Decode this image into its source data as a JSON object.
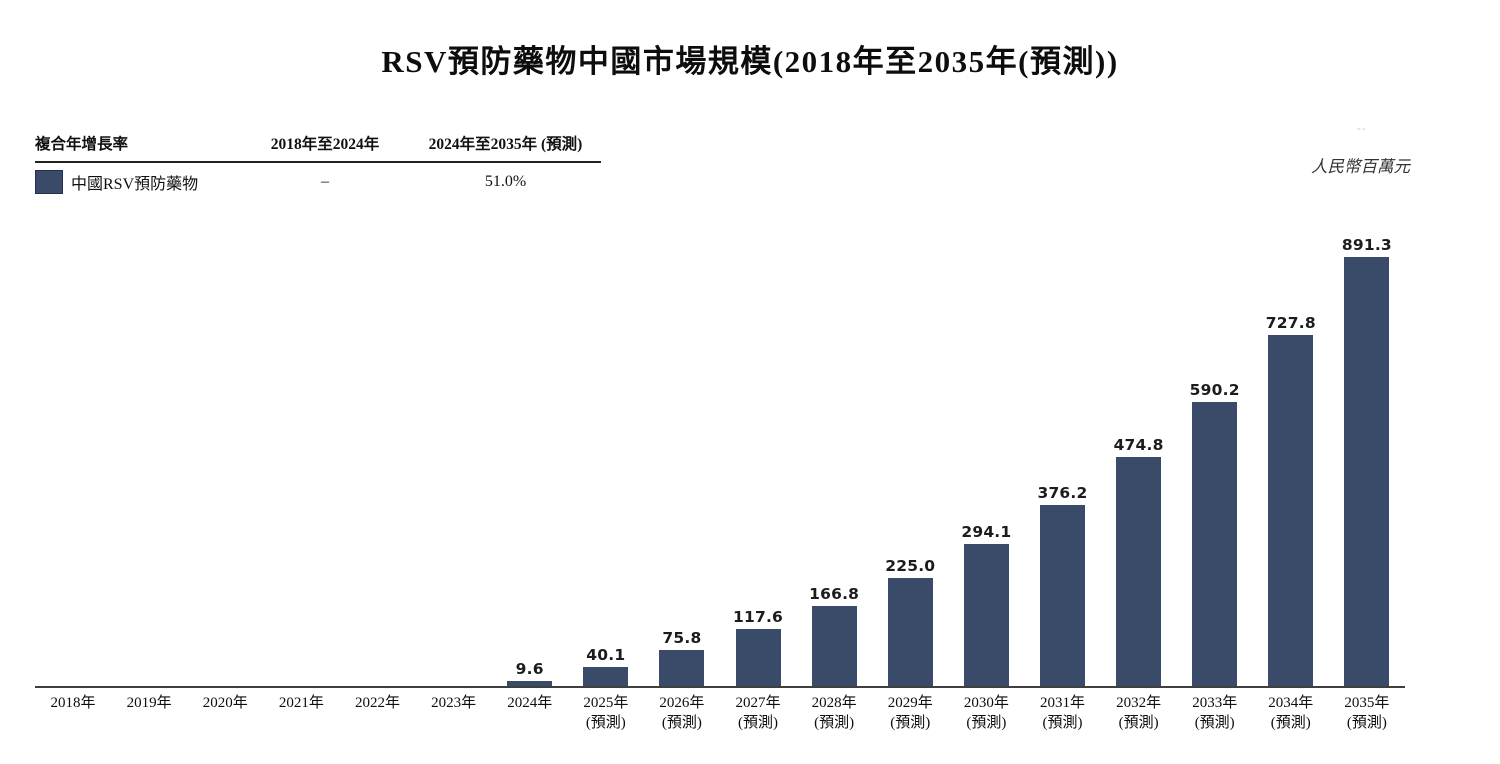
{
  "title": "RSV預防藥物中國市場規模(2018年至2035年(預測))",
  "unit_label": "人民幣百萬元",
  "table": {
    "col_headers": [
      "複合年增長率",
      "2018年至2024年",
      "2024年至2035年 (預測)"
    ],
    "rows": [
      {
        "label": "中國RSV預防藥物",
        "values": [
          "–",
          "51.0%"
        ]
      }
    ]
  },
  "colors": {
    "bar": "#3a4a69",
    "axis": "#3f3f3f",
    "table_rule": "#222222"
  },
  "chart_data": {
    "type": "bar",
    "title": "RSV預防藥物中國市場規模(2018年至2035年(預測))",
    "unit": "人民幣百萬元",
    "categories": [
      "2018年",
      "2019年",
      "2020年",
      "2021年",
      "2022年",
      "2023年",
      "2024年",
      "2025年",
      "2026年",
      "2027年",
      "2028年",
      "2029年",
      "2030年",
      "2031年",
      "2032年",
      "2033年",
      "2034年",
      "2035年"
    ],
    "sublabels": [
      "",
      "",
      "",
      "",
      "",
      "",
      "",
      "(預測)",
      "(預測)",
      "(預測)",
      "(預測)",
      "(預測)",
      "(預測)",
      "(預測)",
      "(預測)",
      "(預測)",
      "(預測)",
      "(預測)"
    ],
    "values": [
      0,
      0,
      0,
      0,
      0,
      0,
      9.6,
      40.1,
      75.8,
      117.6,
      166.8,
      225.0,
      294.1,
      376.2,
      474.8,
      590.2,
      727.8,
      891.3
    ],
    "value_labels": [
      "",
      "",
      "",
      "",
      "",
      "",
      "9.6",
      "40.1",
      "75.8",
      "117.6",
      "166.8",
      "225.0",
      "294.1",
      "376.2",
      "474.8",
      "590.2",
      "727.8",
      "891.3"
    ],
    "ylim": [
      0,
      940
    ],
    "bar_color": "#3a4a69",
    "grid": false,
    "legend_position": "top-left",
    "legend": [
      {
        "label": "中國RSV預防藥物",
        "cagr_2018_2024": "–",
        "cagr_2024_2035": "51.0%"
      }
    ]
  }
}
